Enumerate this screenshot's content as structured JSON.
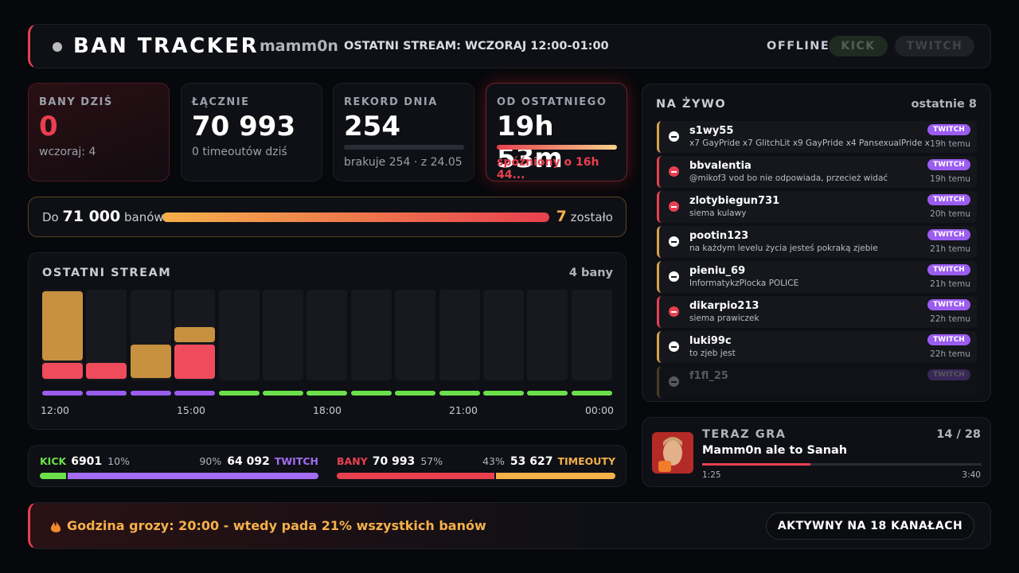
{
  "header": {
    "title": "BAN TRACKER",
    "channel": "mamm0n",
    "last_stream": "OSTATNI STREAM: WCZORAJ 12:00-01:00",
    "status": "OFFLINE",
    "platforms": [
      "KICK",
      "TWITCH"
    ]
  },
  "stats": [
    {
      "label": "BANY DZIŚ",
      "value": "0",
      "sub": "wczoraj: 4"
    },
    {
      "label": "ŁĄCZNIE",
      "value": "70 993",
      "sub": "0 timeoutów dziś"
    },
    {
      "label": "REKORD DNIA",
      "value": "254",
      "sub": "brakuje 254 · z 24.05"
    },
    {
      "label": "OD OSTATNIEGO",
      "value": "19h 53m",
      "sub": "spóźniony o 16h 44..."
    }
  ],
  "goal": {
    "prefix": "Do",
    "target": "71 000",
    "unit": "banów",
    "remaining": "7",
    "remaining_label": "zostało"
  },
  "stream": {
    "title": "OSTATNI STREAM",
    "total": "4 bany",
    "bans": [
      1,
      1,
      0,
      2,
      0,
      0,
      0,
      0,
      0,
      0,
      0,
      0,
      0
    ],
    "timeouts": [
      4,
      0,
      2,
      1,
      0,
      0,
      0,
      0,
      0,
      0,
      0,
      0,
      0
    ],
    "times": [
      "12:00",
      "15:00",
      "18:00",
      "21:00",
      "00:00"
    ]
  },
  "split": {
    "kick": {
      "label": "KICK",
      "count": "6901",
      "share": "10%"
    },
    "twitch": {
      "label": "TWITCH",
      "count": "64 092",
      "share": "90%"
    },
    "bans": {
      "label": "BANY",
      "count": "70 993",
      "share": "57%"
    },
    "timeouts": {
      "label": "TIMEOUTY",
      "count": "53 627",
      "share": "43%"
    }
  },
  "feed": {
    "title": "NA ŻYWO",
    "subtitle": "ostatnie 8",
    "items": [
      {
        "name": "s1wy55",
        "message": "x7 GayPride x7 GlitchLit x9 GayPride x4 PansexualPride x",
        "platform": "TWITCH",
        "time": "19h temu",
        "color": "#d9a24a"
      },
      {
        "name": "bbvalentia",
        "message": "@mikof3 vod bo nie odpowiada, przecież widać",
        "platform": "TWITCH",
        "time": "19h temu",
        "color": "#e8404f"
      },
      {
        "name": "zlotybiegun731",
        "message": "siema kulawy",
        "platform": "TWITCH",
        "time": "20h temu",
        "color": "#e8404f"
      },
      {
        "name": "pootin123",
        "message": "na każdym levelu życia jesteś pokraką zjebie",
        "platform": "TWITCH",
        "time": "21h temu",
        "color": "#d9a24a"
      },
      {
        "name": "pieniu_69",
        "message": "InformatykzPlocka POLICE",
        "platform": "TWITCH",
        "time": "21h temu",
        "color": "#d9a24a"
      },
      {
        "name": "dikarpio213",
        "message": "siema prawiczek",
        "platform": "TWITCH",
        "time": "22h temu",
        "color": "#e8404f"
      },
      {
        "name": "luki99c",
        "message": "to zjeb jest",
        "platform": "TWITCH",
        "time": "22h temu",
        "color": "#d9a24a"
      },
      {
        "name": "f1fl_25",
        "platform": "TWITCH",
        "color": "#d9a24a"
      }
    ]
  },
  "now_playing": {
    "label": "TERAZ GRA",
    "position": "14 / 28",
    "track": "Mamm0n ale to Sanah",
    "elapsed": "1:25",
    "duration": "3:40"
  },
  "banner": {
    "text": "Godzina grozy: 20:00 - wtedy pada 21% wszystkich banów",
    "channels": "AKTYWNY NA 18 KANAŁACH"
  }
}
